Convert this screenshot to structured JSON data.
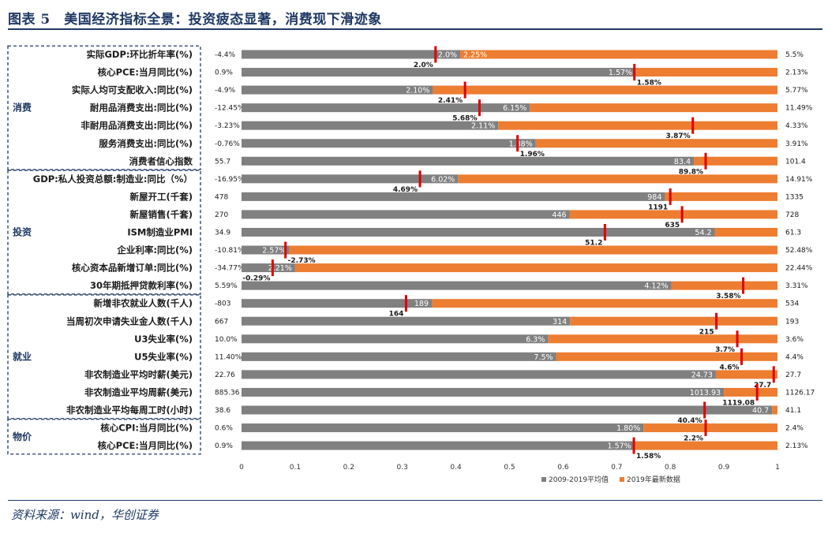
{
  "header": {
    "title": "图表 5　美国经济指标全景：投资疲态显著，消费现下滑迹象"
  },
  "source": "资料来源：wind，华创证券",
  "chart_data": {
    "type": "bar",
    "orientation": "horizontal",
    "stacked": true,
    "xlim": [
      0,
      1
    ],
    "xticks": [
      "0",
      "0.1",
      "0.2",
      "0.3",
      "0.4",
      "0.5",
      "0.6",
      "0.7",
      "0.8",
      "0.9",
      "1"
    ],
    "legend": [
      "2009-2019平均值",
      "2019年最新数据"
    ],
    "legend_position": "bottom-right",
    "colors": {
      "avg": "#808080",
      "latest": "#ed7d31",
      "marker": "#e00000",
      "group": "#1f3864"
    },
    "groups": [
      {
        "name": "消费",
        "rows": [
          0,
          6
        ]
      },
      {
        "name": "投资",
        "rows": [
          7,
          13
        ]
      },
      {
        "name": "就业",
        "rows": [
          14,
          20
        ]
      },
      {
        "name": "物价",
        "rows": [
          21,
          22
        ]
      }
    ],
    "rows": [
      {
        "label": "实际GDP:环比折年率(%)",
        "min": "-4.4%",
        "max": "5.5%",
        "avg": 0.408,
        "avg_label": "2.0%",
        "latest": 0.408,
        "latest_label": "2.25%",
        "marker": 0.362,
        "marker_label": "2.0%",
        "marker_label_side": "left"
      },
      {
        "label": "核心PCE:当月同比(%)",
        "min": "0.9%",
        "max": "2.13%",
        "avg": 0.735,
        "avg_label": "1.57%",
        "latest": 0.735,
        "latest_label": "",
        "marker": 0.733,
        "marker_label": "1.58%",
        "marker_label_side": "right"
      },
      {
        "label": "实际人均可支配收入:同比(%)",
        "min": "-4.9%",
        "max": "5.77%",
        "avg": 0.357,
        "avg_label": "2.10%",
        "latest": 0.357,
        "latest_label": "",
        "marker": 0.417,
        "marker_label": "2.41%",
        "marker_label_side": "left"
      },
      {
        "label": "耐用品消费支出:同比(%)",
        "min": "-12.45%",
        "max": "11.49%",
        "avg": 0.538,
        "avg_label": "6.15%",
        "latest": 0.538,
        "latest_label": "",
        "marker": 0.444,
        "marker_label": "5.68%",
        "marker_label_side": "left"
      },
      {
        "label": "非耐用品消费支出:同比(%)",
        "min": "-3.23%",
        "max": "4.33%",
        "avg": 0.479,
        "avg_label": "2.11%",
        "latest": 0.479,
        "latest_label": "",
        "marker": 0.842,
        "marker_label": "3.87%",
        "marker_label_side": "left"
      },
      {
        "label": "服务消费支出:同比(%)",
        "min": "-0.76%",
        "max": "3.91%",
        "avg": 0.549,
        "avg_label": "1.88%",
        "latest": 0.549,
        "latest_label": "",
        "marker": 0.515,
        "marker_label": "1.96%",
        "marker_label_side": "right"
      },
      {
        "label": "消费者信心指数",
        "min": "55.7",
        "max": "101.4",
        "avg": 0.844,
        "avg_label": "83.4",
        "latest": 0.844,
        "latest_label": "",
        "marker": 0.866,
        "marker_label": "89.8%",
        "marker_label_side": "left"
      },
      {
        "label": "GDP:私人投资总额:制造业:同比（%）",
        "min": "-16.95%",
        "max": "14.91%",
        "avg": 0.404,
        "avg_label": "6.02%",
        "latest": 0.404,
        "latest_label": "",
        "marker": 0.333,
        "marker_label": "4.69%",
        "marker_label_side": "left"
      },
      {
        "label": "新屋开工(千套)",
        "min": "478",
        "max": "1335",
        "avg": 0.79,
        "avg_label": "984",
        "latest": 0.79,
        "latest_label": "",
        "marker": 0.8,
        "marker_label": "1191",
        "marker_label_side": "left"
      },
      {
        "label": "新屋销售(千套)",
        "min": "270",
        "max": "728",
        "avg": 0.612,
        "avg_label": "446",
        "latest": 0.612,
        "latest_label": "",
        "marker": 0.822,
        "marker_label": "635",
        "marker_label_side": "left"
      },
      {
        "label": "ISM制造业PMI",
        "min": "34.9",
        "max": "61.3",
        "avg": 0.883,
        "avg_label": "54.2",
        "latest": 0.883,
        "latest_label": "",
        "marker": 0.678,
        "marker_label": "51.2",
        "marker_label_side": "left"
      },
      {
        "label": "企业利率:同比(%)",
        "min": "-10.81%",
        "max": "52.48%",
        "avg": 0.089,
        "avg_label": "2.57%",
        "latest": 0.089,
        "latest_label": "",
        "marker": 0.082,
        "marker_label": "-2.73%",
        "marker_label_side": "right"
      },
      {
        "label": "核心资本品新增订单:同比(%)",
        "min": "-34.77%",
        "max": "22.44%",
        "avg": 0.1,
        "avg_label": "2.21%",
        "latest": 0.1,
        "latest_label": "",
        "marker": 0.058,
        "marker_label": "-0.29%",
        "marker_label_side": "left"
      },
      {
        "label": "30年期抵押贷款利率(%)",
        "min": "5.59%",
        "max": "3.31%",
        "avg": 0.802,
        "avg_label": "4.12%",
        "latest": 0.802,
        "latest_label": "",
        "marker": 0.936,
        "marker_label": "3.58%",
        "marker_label_side": "left"
      },
      {
        "label": "新增非农就业人数(千人)",
        "min": "-803",
        "max": "534",
        "avg": 0.355,
        "avg_label": "189",
        "latest": 0.355,
        "latest_label": "",
        "marker": 0.307,
        "marker_label": "164",
        "marker_label_side": "left"
      },
      {
        "label": "当周初次申请失业金人数(千人)",
        "min": "667",
        "max": "193",
        "avg": 0.613,
        "avg_label": "314",
        "latest": 0.613,
        "latest_label": "",
        "marker": 0.886,
        "marker_label": "215",
        "marker_label_side": "left"
      },
      {
        "label": "U3失业率(%)",
        "min": "10.0%",
        "max": "3.6%",
        "avg": 0.572,
        "avg_label": "6.3%",
        "latest": 0.572,
        "latest_label": "",
        "marker": 0.925,
        "marker_label": "3.7%",
        "marker_label_side": "left"
      },
      {
        "label": "U5失业率(%)",
        "min": "11.40%",
        "max": "4.4%",
        "avg": 0.587,
        "avg_label": "7.5%",
        "latest": 0.587,
        "latest_label": "",
        "marker": 0.933,
        "marker_label": "4.6%",
        "marker_label_side": "left"
      },
      {
        "label": "非农制造业平均时薪(美元)",
        "min": "22.76",
        "max": "27.7",
        "avg": 0.885,
        "avg_label": "24.73",
        "latest": 0.885,
        "latest_label": "",
        "marker": 0.993,
        "marker_label": "27.7",
        "marker_label_side": "left"
      },
      {
        "label": "非农制造业平均周薪(美元)",
        "min": "885.36",
        "max": "1126.17",
        "avg": 0.9,
        "avg_label": "1013.93",
        "latest": 0.9,
        "latest_label": "",
        "marker": 0.962,
        "marker_label": "1119.08",
        "marker_label_side": "left"
      },
      {
        "label": "非农制造业平均每周工时(小时)",
        "min": "38.6",
        "max": "41.1",
        "avg": 0.99,
        "avg_label": "40.7",
        "latest": 0.99,
        "latest_label": "",
        "marker": 0.864,
        "marker_label": "40.4%",
        "marker_label_side": "left"
      },
      {
        "label": "核心CPI:当月同比(%)",
        "min": "0.6%",
        "max": "2.4%",
        "avg": 0.75,
        "avg_label": "1.80%",
        "latest": 0.75,
        "latest_label": "",
        "marker": 0.866,
        "marker_label": "2.2%",
        "marker_label_side": "left"
      },
      {
        "label": "核心PCE:当月同比(%)",
        "min": "0.9%",
        "max": "2.13%",
        "avg": 0.733,
        "avg_label": "1.57%",
        "latest": 0.733,
        "latest_label": "",
        "marker": 0.732,
        "marker_label": "1.58%",
        "marker_label_side": "right"
      }
    ]
  }
}
